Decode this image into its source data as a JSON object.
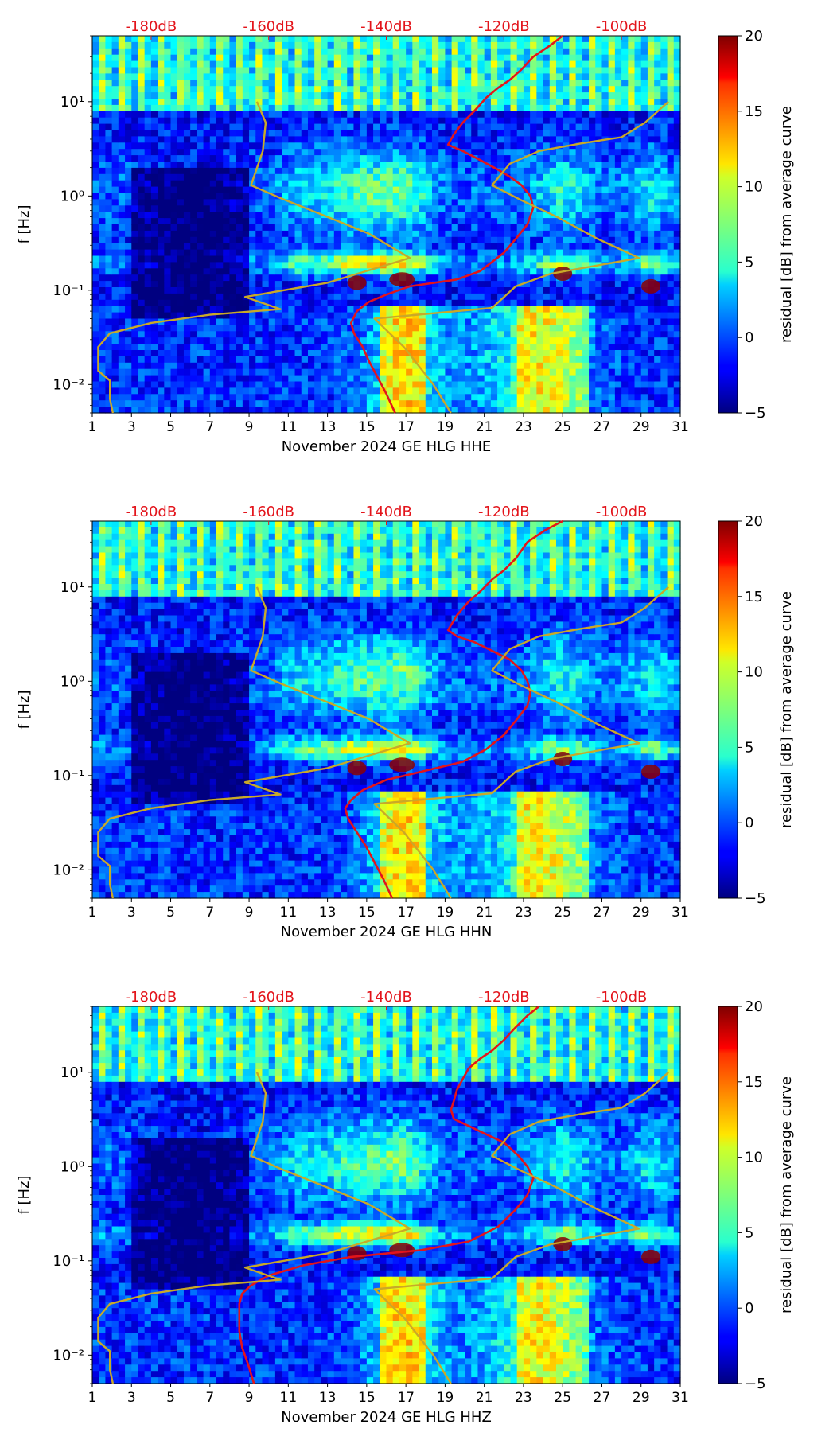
{
  "colors": {
    "colormap": "jet",
    "power_curve": "#e3141b",
    "model_curve": "#c9a928",
    "top_label": "#e3141b"
  },
  "shared": {
    "ylabel": "f [Hz]",
    "colorbar_label": "residual [dB] from average curve",
    "colorbar_ticks": [
      "20",
      "15",
      "10",
      "5",
      "0",
      "−5"
    ],
    "colorbar_range": [
      -5,
      20
    ],
    "y_ticks": [
      {
        "value": 10,
        "label": "10¹"
      },
      {
        "value": 1,
        "label": "10⁰"
      },
      {
        "value": 0.1,
        "label": "10⁻¹"
      },
      {
        "value": 0.01,
        "label": "10⁻²"
      }
    ],
    "x_ticks": [
      "1",
      "3",
      "5",
      "7",
      "9",
      "11",
      "13",
      "15",
      "17",
      "19",
      "21",
      "23",
      "25",
      "27",
      "29",
      "31"
    ],
    "top_ticks": [
      "-180dB",
      "-160dB",
      "-140dB",
      "-120dB",
      "-100dB"
    ]
  },
  "chart_data": [
    {
      "type": "heatmap",
      "xlabel": "November 2024 GE HLG  HHE",
      "ylabel": "f [Hz]",
      "xlim": [
        1,
        31
      ],
      "ylim": [
        0.005,
        50
      ],
      "y_scale": "log",
      "top_axis": {
        "label_ticks": [
          "-180dB",
          "-160dB",
          "-140dB",
          "-120dB",
          "-100dB"
        ],
        "values": [
          -180,
          -160,
          -140,
          -120,
          -100
        ],
        "range": [
          -190,
          -90
        ]
      },
      "colorbar": {
        "label": "residual [dB] from average curve",
        "range": [
          -5,
          20
        ],
        "ticks": [
          -5,
          0,
          5,
          10,
          15,
          20
        ]
      },
      "series": [
        {
          "name": "",
          "color": "#e3141b",
          "axis": "top",
          "points": [
            [
              -110,
              50
            ],
            [
              -112,
              40
            ],
            [
              -115,
              30
            ],
            [
              -117,
              22
            ],
            [
              -119,
              17
            ],
            [
              -121,
              14
            ],
            [
              -123,
              11
            ],
            [
              -125,
              8
            ],
            [
              -127,
              6
            ],
            [
              -128.5,
              4.5
            ],
            [
              -129.5,
              3.5
            ],
            [
              -127,
              3.0
            ],
            [
              -124,
              2.4
            ],
            [
              -121,
              1.9
            ],
            [
              -119,
              1.6
            ],
            [
              -117,
              1.3
            ],
            [
              -115.5,
              1.0
            ],
            [
              -115,
              0.75
            ],
            [
              -116,
              0.5
            ],
            [
              -118,
              0.35
            ],
            [
              -120,
              0.25
            ],
            [
              -122,
              0.2
            ],
            [
              -124,
              0.16
            ],
            [
              -128,
              0.13
            ],
            [
              -136,
              0.11
            ],
            [
              -140,
              0.09
            ],
            [
              -143,
              0.075
            ],
            [
              -145,
              0.06
            ],
            [
              -146,
              0.045
            ],
            [
              -145.5,
              0.035
            ],
            [
              -144,
              0.025
            ],
            [
              -143,
              0.018
            ],
            [
              -141.5,
              0.012
            ],
            [
              -140,
              0.008
            ],
            [
              -138.5,
              0.005
            ]
          ]
        },
        {
          "name": "",
          "color": "#c9a928",
          "axis": "top",
          "points": [
            [
              -162,
              10
            ],
            [
              -160.5,
              6
            ],
            [
              -161,
              3
            ],
            [
              -163,
              1.3
            ],
            [
              -158,
              0.95
            ],
            [
              -150,
              0.6
            ],
            [
              -143,
              0.4
            ],
            [
              -136,
              0.22
            ],
            [
              -150,
              0.12
            ],
            [
              -164,
              0.085
            ],
            [
              -158,
              0.063
            ],
            [
              -170,
              0.055
            ],
            [
              -180,
              0.045
            ],
            [
              -187,
              0.035
            ],
            [
              -189,
              0.025
            ],
            [
              -189,
              0.018
            ],
            [
              -189,
              0.014
            ],
            [
              -187,
              0.011
            ],
            [
              -187,
              0.007
            ],
            [
              -186.5,
              0.005
            ]
          ]
        },
        {
          "name": "",
          "color": "#c9a928",
          "axis": "top",
          "points": [
            [
              -129,
              0.005
            ],
            [
              -132,
              0.01
            ],
            [
              -137,
              0.025
            ],
            [
              -142,
              0.05
            ],
            [
              -128,
              0.06
            ],
            [
              -122,
              0.065
            ],
            [
              -118,
              0.11
            ],
            [
              -112,
              0.15
            ],
            [
              -97,
              0.22
            ],
            [
              -104,
              0.35
            ],
            [
              -111,
              0.6
            ],
            [
              -117,
              0.9
            ],
            [
              -122,
              1.3
            ],
            [
              -119,
              2.2
            ],
            [
              -114,
              3.0
            ],
            [
              -107,
              3.6
            ],
            [
              -100,
              4.2
            ],
            [
              -96,
              6.0
            ],
            [
              -92,
              10
            ]
          ]
        }
      ]
    },
    {
      "type": "heatmap",
      "xlabel": "November 2024 GE HLG  HHN",
      "ylabel": "f [Hz]",
      "xlim": [
        1,
        31
      ],
      "ylim": [
        0.005,
        50
      ],
      "y_scale": "log",
      "top_axis": {
        "label_ticks": [
          "-180dB",
          "-160dB",
          "-140dB",
          "-120dB",
          "-100dB"
        ],
        "values": [
          -180,
          -160,
          -140,
          -120,
          -100
        ],
        "range": [
          -190,
          -90
        ]
      },
      "colorbar": {
        "label": "residual [dB] from average curve",
        "range": [
          -5,
          20
        ],
        "ticks": [
          -5,
          0,
          5,
          10,
          15,
          20
        ]
      },
      "series": [
        {
          "name": "",
          "color": "#e3141b",
          "axis": "top",
          "points": [
            [
              -110,
              50
            ],
            [
              -113,
              40
            ],
            [
              -116,
              30
            ],
            [
              -118,
              20
            ],
            [
              -120,
              15
            ],
            [
              -122,
              12
            ],
            [
              -124,
              9
            ],
            [
              -126,
              7
            ],
            [
              -128,
              5
            ],
            [
              -129.5,
              3.5
            ],
            [
              -128,
              3.0
            ],
            [
              -125,
              2.6
            ],
            [
              -122,
              2.1
            ],
            [
              -119,
              1.7
            ],
            [
              -117,
              1.3
            ],
            [
              -116,
              1.0
            ],
            [
              -115.5,
              0.75
            ],
            [
              -116,
              0.55
            ],
            [
              -118,
              0.38
            ],
            [
              -120,
              0.27
            ],
            [
              -123,
              0.19
            ],
            [
              -127,
              0.14
            ],
            [
              -134,
              0.11
            ],
            [
              -140,
              0.09
            ],
            [
              -144,
              0.07
            ],
            [
              -146,
              0.055
            ],
            [
              -147,
              0.045
            ],
            [
              -146.5,
              0.035
            ],
            [
              -145,
              0.025
            ],
            [
              -143.5,
              0.018
            ],
            [
              -142,
              0.012
            ],
            [
              -140.5,
              0.008
            ],
            [
              -139,
              0.005
            ]
          ]
        },
        {
          "name": "",
          "color": "#c9a928",
          "axis": "top",
          "points": [
            [
              -162,
              10
            ],
            [
              -160.5,
              6
            ],
            [
              -161,
              3
            ],
            [
              -163,
              1.3
            ],
            [
              -158,
              0.95
            ],
            [
              -150,
              0.6
            ],
            [
              -143,
              0.4
            ],
            [
              -136,
              0.22
            ],
            [
              -150,
              0.12
            ],
            [
              -164,
              0.085
            ],
            [
              -158,
              0.063
            ],
            [
              -170,
              0.055
            ],
            [
              -180,
              0.045
            ],
            [
              -187,
              0.035
            ],
            [
              -189,
              0.025
            ],
            [
              -189,
              0.018
            ],
            [
              -189,
              0.014
            ],
            [
              -187,
              0.011
            ],
            [
              -187,
              0.007
            ],
            [
              -186.5,
              0.005
            ]
          ]
        },
        {
          "name": "",
          "color": "#c9a928",
          "axis": "top",
          "points": [
            [
              -129,
              0.005
            ],
            [
              -132,
              0.01
            ],
            [
              -137,
              0.025
            ],
            [
              -142,
              0.05
            ],
            [
              -128,
              0.06
            ],
            [
              -122,
              0.065
            ],
            [
              -118,
              0.11
            ],
            [
              -112,
              0.15
            ],
            [
              -97,
              0.22
            ],
            [
              -104,
              0.35
            ],
            [
              -111,
              0.6
            ],
            [
              -117,
              0.9
            ],
            [
              -122,
              1.3
            ],
            [
              -119,
              2.2
            ],
            [
              -114,
              3.0
            ],
            [
              -107,
              3.6
            ],
            [
              -100,
              4.2
            ],
            [
              -96,
              6.0
            ],
            [
              -92,
              10
            ]
          ]
        }
      ]
    },
    {
      "type": "heatmap",
      "xlabel": "November 2024 GE HLG  HHZ",
      "ylabel": "f [Hz]",
      "xlim": [
        1,
        31
      ],
      "ylim": [
        0.005,
        50
      ],
      "y_scale": "log",
      "top_axis": {
        "label_ticks": [
          "-180dB",
          "-160dB",
          "-140dB",
          "-120dB",
          "-100dB"
        ],
        "values": [
          -180,
          -160,
          -140,
          -120,
          -100
        ],
        "range": [
          -190,
          -90
        ]
      },
      "colorbar": {
        "label": "residual [dB] from average curve",
        "range": [
          -5,
          20
        ],
        "ticks": [
          -5,
          0,
          5,
          10,
          15,
          20
        ]
      },
      "series": [
        {
          "name": "",
          "color": "#e3141b",
          "axis": "top",
          "points": [
            [
              -114,
              50
            ],
            [
              -116,
              40
            ],
            [
              -118,
              30
            ],
            [
              -120,
              22
            ],
            [
              -122,
              17
            ],
            [
              -124,
              14
            ],
            [
              -126,
              11
            ],
            [
              -127,
              8.5
            ],
            [
              -128,
              6.5
            ],
            [
              -128.5,
              5
            ],
            [
              -129,
              4
            ],
            [
              -128.5,
              3.2
            ],
            [
              -126,
              2.7
            ],
            [
              -123,
              2.2
            ],
            [
              -120,
              1.8
            ],
            [
              -117.5,
              1.3
            ],
            [
              -116,
              1.0
            ],
            [
              -115,
              0.75
            ],
            [
              -116,
              0.5
            ],
            [
              -118,
              0.35
            ],
            [
              -121,
              0.23
            ],
            [
              -126,
              0.16
            ],
            [
              -134,
              0.13
            ],
            [
              -146,
              0.11
            ],
            [
              -154,
              0.09
            ],
            [
              -160,
              0.07
            ],
            [
              -163,
              0.055
            ],
            [
              -164.5,
              0.045
            ],
            [
              -165,
              0.035
            ],
            [
              -165,
              0.025
            ],
            [
              -165,
              0.018
            ],
            [
              -164.5,
              0.012
            ],
            [
              -163.5,
              0.008
            ],
            [
              -162.5,
              0.005
            ]
          ]
        },
        {
          "name": "",
          "color": "#c9a928",
          "axis": "top",
          "points": [
            [
              -162,
              10
            ],
            [
              -160.5,
              6
            ],
            [
              -161,
              3
            ],
            [
              -163,
              1.3
            ],
            [
              -158,
              0.95
            ],
            [
              -150,
              0.6
            ],
            [
              -143,
              0.4
            ],
            [
              -136,
              0.22
            ],
            [
              -150,
              0.12
            ],
            [
              -164,
              0.085
            ],
            [
              -158,
              0.063
            ],
            [
              -170,
              0.055
            ],
            [
              -180,
              0.045
            ],
            [
              -187,
              0.035
            ],
            [
              -189,
              0.025
            ],
            [
              -189,
              0.018
            ],
            [
              -189,
              0.014
            ],
            [
              -187,
              0.011
            ],
            [
              -187,
              0.007
            ],
            [
              -186.5,
              0.005
            ]
          ]
        },
        {
          "name": "",
          "color": "#c9a928",
          "axis": "top",
          "points": [
            [
              -129,
              0.005
            ],
            [
              -132,
              0.01
            ],
            [
              -137,
              0.025
            ],
            [
              -142,
              0.05
            ],
            [
              -128,
              0.06
            ],
            [
              -122,
              0.065
            ],
            [
              -118,
              0.11
            ],
            [
              -112,
              0.15
            ],
            [
              -97,
              0.22
            ],
            [
              -104,
              0.35
            ],
            [
              -111,
              0.6
            ],
            [
              -117,
              0.9
            ],
            [
              -122,
              1.3
            ],
            [
              -119,
              2.2
            ],
            [
              -114,
              3.0
            ],
            [
              -107,
              3.6
            ],
            [
              -100,
              4.2
            ],
            [
              -96,
              6.0
            ],
            [
              -92,
              10
            ]
          ]
        }
      ]
    }
  ]
}
